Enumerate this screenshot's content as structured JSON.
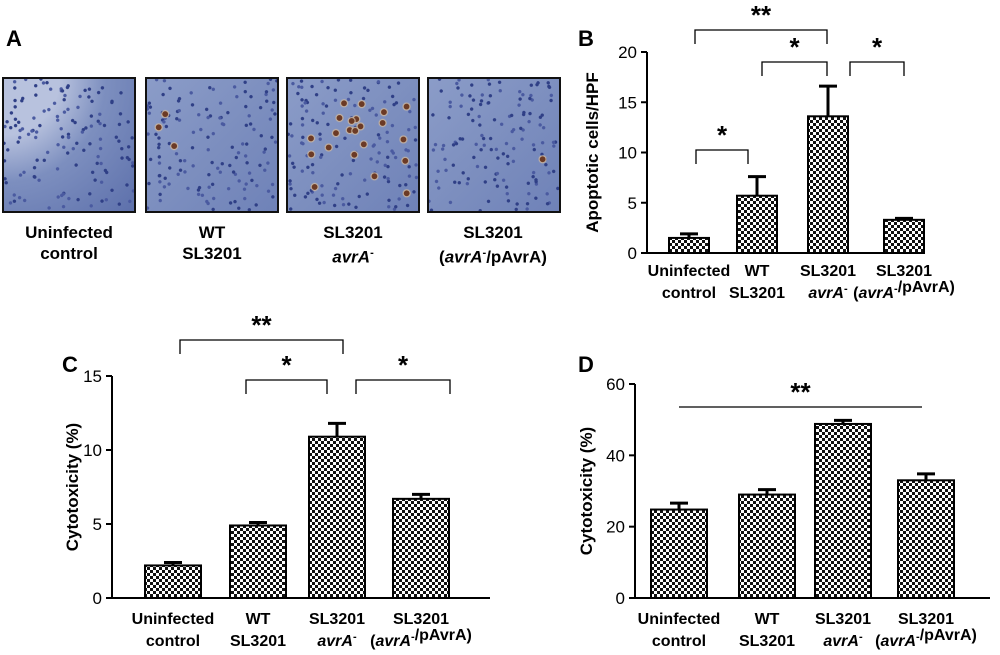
{
  "panel_labels": {
    "a": "A",
    "b": "B",
    "c": "C",
    "d": "D"
  },
  "panel_a": {
    "captions": [
      {
        "line1": "Uninfected",
        "line2": "control"
      },
      {
        "line1": "WT",
        "line2": "SL3201"
      },
      {
        "line1": "SL3201",
        "line2": "avrA-"
      },
      {
        "line1": "SL3201",
        "line2": "(avrA-/pAvrA)"
      }
    ],
    "apoptotic_cells_shown": [
      0,
      3,
      22,
      1
    ]
  },
  "colors": {
    "bar_pattern_dark": "#111111",
    "bar_pattern_light": "#ffffff",
    "tissue_stain": "#7d8fbf",
    "apoptotic_stain": "#6b3a26"
  },
  "chart_data": [
    {
      "id": "B",
      "type": "bar",
      "categories": [
        {
          "line1": "Uninfected",
          "line2": "control"
        },
        {
          "line1": "WT",
          "line2": "SL3201"
        },
        {
          "line1": "SL3201",
          "line2": "avrA-"
        },
        {
          "line1": "SL3201",
          "line2": "(avrA-/pAvrA)"
        }
      ],
      "values": [
        1.5,
        5.7,
        13.6,
        3.3
      ],
      "errors": [
        0.4,
        1.9,
        3.0,
        0.15
      ],
      "ylabel": "Apoptotic cells/HPF",
      "ylim": [
        0,
        20
      ],
      "yticks": [
        0,
        5,
        10,
        15,
        20
      ],
      "significance": [
        {
          "from": 0,
          "to": 2,
          "label": "**",
          "style": "bracket"
        },
        {
          "from": 1,
          "to": 2,
          "label": "*",
          "style": "bracket"
        },
        {
          "from": 2,
          "to": 3,
          "label": "*",
          "style": "bracket"
        },
        {
          "from": 0,
          "to": 1,
          "label": "*",
          "style": "bracket"
        }
      ]
    },
    {
      "id": "C",
      "type": "bar",
      "categories": [
        {
          "line1": "Uninfected",
          "line2": "control"
        },
        {
          "line1": "WT",
          "line2": "SL3201"
        },
        {
          "line1": "SL3201",
          "line2": "avrA-"
        },
        {
          "line1": "SL3201",
          "line2": "(avrA-/pAvrA)"
        }
      ],
      "values": [
        2.2,
        4.9,
        10.9,
        6.7
      ],
      "errors": [
        0.2,
        0.2,
        0.9,
        0.3
      ],
      "ylabel": "Cytotoxicity (%)",
      "ylim": [
        0,
        15
      ],
      "yticks": [
        0,
        5,
        10,
        15
      ],
      "significance": [
        {
          "from": 0,
          "to": 2,
          "label": "**",
          "style": "bracket"
        },
        {
          "from": 1,
          "to": 2,
          "label": "*",
          "style": "bracket"
        },
        {
          "from": 2,
          "to": 3,
          "label": "*",
          "style": "bracket"
        }
      ]
    },
    {
      "id": "D",
      "type": "bar",
      "categories": [
        {
          "line1": "Uninfected",
          "line2": "control"
        },
        {
          "line1": "WT",
          "line2": "SL3201"
        },
        {
          "line1": "SL3201",
          "line2": "avrA-"
        },
        {
          "line1": "SL3201",
          "line2": "(avrA-/pAvrA)"
        }
      ],
      "values": [
        24.8,
        29.0,
        48.8,
        33.0
      ],
      "errors": [
        1.8,
        1.4,
        1.0,
        1.8
      ],
      "ylabel": "Cytotoxicity (%)",
      "ylim": [
        0,
        60
      ],
      "yticks": [
        0,
        20,
        40,
        60
      ],
      "significance": [
        {
          "from": 0,
          "to": 3,
          "label": "**",
          "style": "line"
        }
      ]
    }
  ]
}
